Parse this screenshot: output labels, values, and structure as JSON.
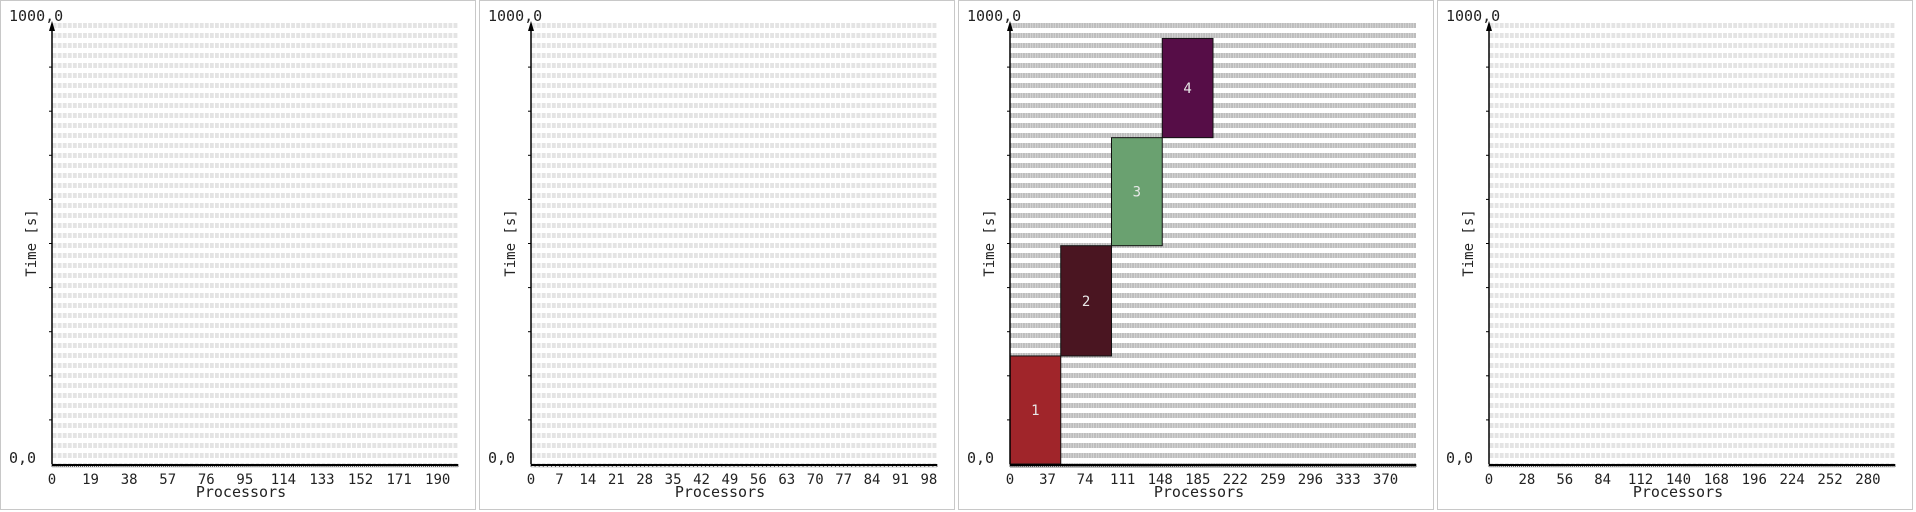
{
  "chart_data": [
    {
      "type": "gantt",
      "ylabel": "Time [s]",
      "xlabel": "Processors",
      "y_min_label": "0,0",
      "y_max_label": "1000,0",
      "ylim": [
        0,
        1000
      ],
      "xlim": [
        0,
        200
      ],
      "x_ticks": [
        0,
        19,
        38,
        57,
        76,
        95,
        114,
        133,
        152,
        171,
        190
      ],
      "processors": 200,
      "tasks": []
    },
    {
      "type": "gantt",
      "ylabel": "Time [s]",
      "xlabel": "Processors",
      "y_min_label": "0,0",
      "y_max_label": "1000,0",
      "ylim": [
        0,
        1000
      ],
      "xlim": [
        0,
        100
      ],
      "x_ticks": [
        0,
        7,
        14,
        21,
        28,
        35,
        42,
        49,
        56,
        63,
        70,
        77,
        84,
        91,
        98
      ],
      "processors": 100,
      "tasks": []
    },
    {
      "type": "gantt",
      "ylabel": "Time [s]",
      "xlabel": "Processors",
      "y_min_label": "0,0",
      "y_max_label": "1000,0",
      "ylim": [
        0,
        1000
      ],
      "xlim": [
        0,
        400
      ],
      "x_ticks": [
        0,
        37,
        74,
        111,
        148,
        185,
        222,
        259,
        296,
        333,
        370
      ],
      "processors": 400,
      "tasks": [
        {
          "label": "1",
          "x0": 0,
          "x1": 50,
          "y0": 0,
          "y1": 245,
          "color": "#a0252a"
        },
        {
          "label": "2",
          "x0": 50,
          "x1": 100,
          "y0": 245,
          "y1": 495,
          "color": "#4a1521"
        },
        {
          "label": "3",
          "x0": 100,
          "x1": 150,
          "y0": 495,
          "y1": 740,
          "color": "#6aa170"
        },
        {
          "label": "4",
          "x0": 150,
          "x1": 200,
          "y0": 740,
          "y1": 965,
          "color": "#560d47"
        }
      ]
    },
    {
      "type": "gantt",
      "ylabel": "Time [s]",
      "xlabel": "Processors",
      "y_min_label": "0,0",
      "y_max_label": "1000,0",
      "ylim": [
        0,
        1000
      ],
      "xlim": [
        0,
        300
      ],
      "x_ticks": [
        0,
        28,
        56,
        84,
        112,
        140,
        168,
        196,
        224,
        252,
        280
      ],
      "processors": 300,
      "tasks": []
    }
  ]
}
